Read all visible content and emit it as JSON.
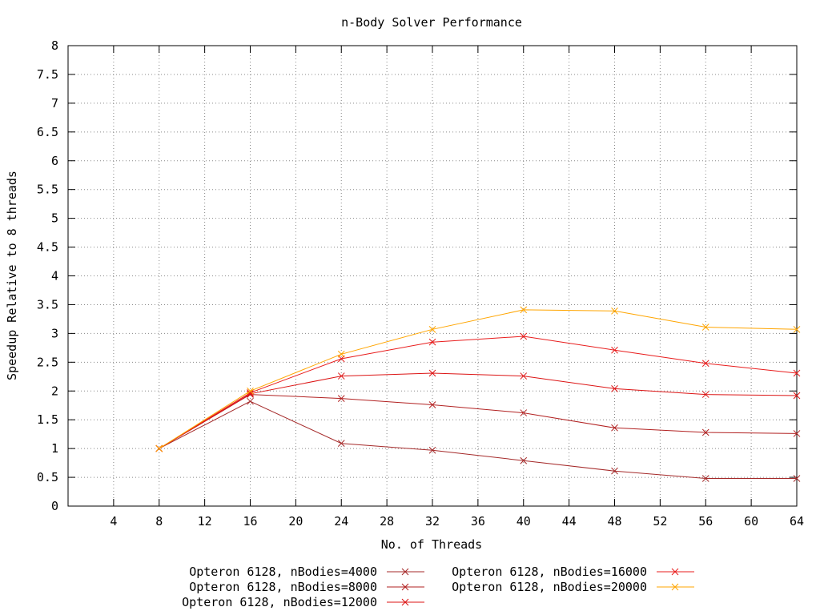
{
  "chart_data": {
    "type": "line",
    "title": "n-Body Solver Performance",
    "xlabel": "No. of Threads",
    "ylabel": "Speedup Relative to 8 threads",
    "xlim": [
      0,
      64
    ],
    "ylim": [
      0,
      8
    ],
    "xticks": [
      4,
      8,
      12,
      16,
      20,
      24,
      28,
      32,
      36,
      40,
      44,
      48,
      52,
      56,
      60,
      64
    ],
    "xtick_labels": [
      "4",
      "8",
      "12",
      "16",
      "20",
      "24",
      "28",
      "32",
      "36",
      "40",
      "44",
      "48",
      "52",
      "56",
      "60",
      "64"
    ],
    "yticks": [
      0,
      0.5,
      1,
      1.5,
      2,
      2.5,
      3,
      3.5,
      4,
      4.5,
      5,
      5.5,
      6,
      6.5,
      7,
      7.5,
      8
    ],
    "ytick_labels": [
      "0",
      "0.5",
      "1",
      "1.5",
      "2",
      "2.5",
      "3",
      "3.5",
      "4",
      "4.5",
      "5",
      "5.5",
      "6",
      "6.5",
      "7",
      "7.5",
      "8"
    ],
    "grid": true,
    "legend_position": "bottom",
    "x": [
      8,
      16,
      24,
      32,
      40,
      48,
      56,
      64
    ],
    "series": [
      {
        "name": "Opteron 6128, nBodies=4000",
        "color": "#a52a2a",
        "values": [
          1.0,
          1.82,
          1.09,
          0.97,
          0.79,
          0.61,
          0.48,
          0.48
        ]
      },
      {
        "name": "Opteron 6128, nBodies=8000",
        "color": "#b22222",
        "values": [
          1.0,
          1.94,
          1.87,
          1.76,
          1.62,
          1.36,
          1.28,
          1.26
        ]
      },
      {
        "name": "Opteron 6128, nBodies=12000",
        "color": "#dc1414",
        "values": [
          1.0,
          1.95,
          2.26,
          2.31,
          2.26,
          2.04,
          1.94,
          1.92
        ]
      },
      {
        "name": "Opteron 6128, nBodies=16000",
        "color": "#e81c1c",
        "values": [
          1.0,
          1.97,
          2.56,
          2.85,
          2.95,
          2.71,
          2.48,
          2.31
        ]
      },
      {
        "name": "Opteron 6128, nBodies=20000",
        "color": "#ffa500",
        "values": [
          1.0,
          2.0,
          2.64,
          3.07,
          3.41,
          3.39,
          3.11,
          3.07
        ]
      }
    ]
  }
}
